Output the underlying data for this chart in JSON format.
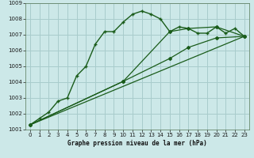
{
  "title": "Graphe pression niveau de la mer (hPa)",
  "bg_color": "#cce8e8",
  "grid_color": "#a8cccc",
  "line_color": "#1a5c1a",
  "xlim": [
    -0.5,
    23.5
  ],
  "ylim": [
    1001,
    1009
  ],
  "xticks": [
    0,
    1,
    2,
    3,
    4,
    5,
    6,
    7,
    8,
    9,
    10,
    11,
    12,
    13,
    14,
    15,
    16,
    17,
    18,
    19,
    20,
    21,
    22,
    23
  ],
  "yticks": [
    1001,
    1002,
    1003,
    1004,
    1005,
    1006,
    1007,
    1008,
    1009
  ],
  "series1_x": [
    0,
    1,
    2,
    3,
    4,
    5,
    6,
    7,
    8,
    9,
    10,
    11,
    12,
    13,
    14,
    15,
    16,
    17,
    18,
    19,
    20,
    21,
    22,
    23
  ],
  "series1_y": [
    1001.3,
    1001.7,
    1002.1,
    1002.8,
    1003.0,
    1004.4,
    1005.0,
    1006.4,
    1007.2,
    1007.2,
    1007.8,
    1008.3,
    1008.5,
    1008.3,
    1008.0,
    1007.2,
    1007.5,
    1007.4,
    1007.1,
    1007.1,
    1007.5,
    1007.1,
    1007.4,
    1006.9
  ],
  "series2_x": [
    0,
    10,
    15,
    17,
    20,
    23
  ],
  "series2_y": [
    1001.3,
    1004.05,
    1007.2,
    1007.4,
    1007.5,
    1006.9
  ],
  "series3_x": [
    0,
    10,
    15,
    17,
    20,
    23
  ],
  "series3_y": [
    1001.3,
    1004.05,
    1005.5,
    1006.2,
    1006.8,
    1006.9
  ],
  "series4_x": [
    0,
    23
  ],
  "series4_y": [
    1001.3,
    1006.9
  ]
}
